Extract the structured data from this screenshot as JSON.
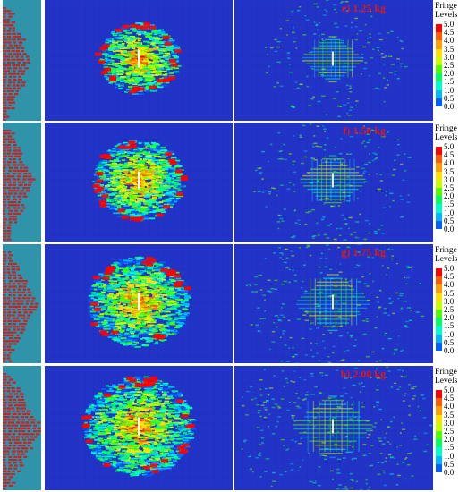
{
  "legend": {
    "title_line1": "Fringe",
    "title_line2": "Levels",
    "ticks": [
      "5.0",
      "4.5",
      "4.0",
      "3.5",
      "3.0",
      "2.5",
      "2.0",
      "1.5",
      "1.0",
      "0.5",
      "0.0"
    ],
    "colors": [
      "#ff0000",
      "#ff5a00",
      "#ffa000",
      "#ffe000",
      "#c8ff00",
      "#50ff00",
      "#00ff60",
      "#00ffd0",
      "#00b8ff",
      "#0060ff",
      "#0000d0"
    ]
  },
  "panels": [
    {
      "label": "e) 1.25 kg"
    },
    {
      "label": "f) 1.50 kg"
    },
    {
      "label": "g) 1.75 kg"
    },
    {
      "label": "h) 2.00 kg"
    }
  ],
  "colors": {
    "plate_background": "#2234c8",
    "side_background": "#2f93aa",
    "damage_red": "#c81e1e",
    "label_red": "#e01818"
  }
}
